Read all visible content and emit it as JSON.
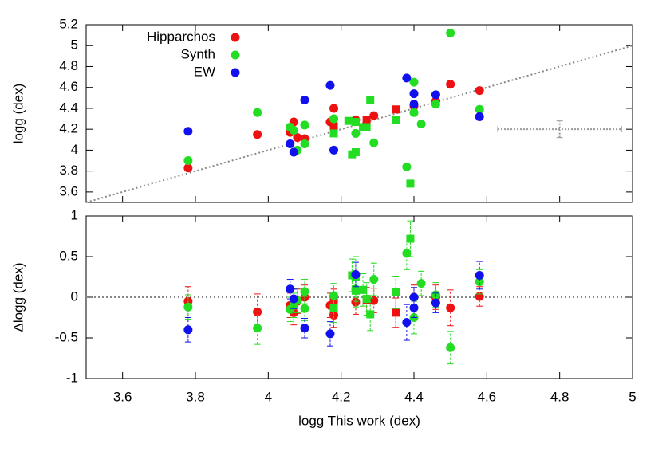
{
  "chart_data": [
    {
      "type": "scatter",
      "y_label": "logg (dex)",
      "xlim": [
        3.5,
        5
      ],
      "ylim": [
        3.5,
        5.2
      ],
      "yticks": [
        3.6,
        3.8,
        4,
        4.2,
        4.4,
        4.6,
        4.8,
        5,
        5.2
      ],
      "diagonal": true,
      "legend": "top-left",
      "sample_error": {
        "x": 4.8,
        "y": 4.2,
        "xerr": 0.17,
        "yerr": 0.08,
        "color": "#999999"
      },
      "series": [
        {
          "name": "Hipparchos",
          "color": "#ee1111",
          "x": [
            3.78,
            3.97,
            4.06,
            4.07,
            4.08,
            4.1,
            4.17,
            4.18,
            4.18,
            4.24,
            4.27,
            4.29,
            4.35,
            4.4,
            4.46,
            4.5,
            4.58
          ],
          "values": [
            3.83,
            4.15,
            4.17,
            4.27,
            4.12,
            4.11,
            4.27,
            4.4,
            4.23,
            4.29,
            4.29,
            4.33,
            4.39,
            4.42,
            4.47,
            4.63,
            4.57
          ],
          "markers": [
            "circle",
            "circle",
            "circle",
            "circle",
            "circle",
            "circle",
            "circle",
            "circle",
            "square",
            "circle",
            "square",
            "circle",
            "square",
            "circle",
            "circle",
            "circle",
            "circle"
          ]
        },
        {
          "name": "Synth",
          "color": "#22dd22",
          "x": [
            3.78,
            3.97,
            4.06,
            4.07,
            4.08,
            4.1,
            4.1,
            4.18,
            4.18,
            4.23,
            4.24,
            4.24,
            4.22,
            4.24,
            4.26,
            4.27,
            4.28,
            4.29,
            4.35,
            4.38,
            4.39,
            4.4,
            4.4,
            4.42,
            4.46,
            4.5,
            4.58
          ],
          "values": [
            3.9,
            4.36,
            4.22,
            4.19,
            4,
            4.24,
            4.06,
            4.3,
            4.16,
            3.96,
            3.98,
            4.16,
            4.28,
            4.27,
            4.22,
            4.22,
            4.48,
            4.07,
            4.29,
            3.84,
            3.68,
            4.65,
            4.36,
            4.25,
            4.44,
            5.12,
            4.39
          ],
          "markers": [
            "circle",
            "circle",
            "circle",
            "circle",
            "circle",
            "circle",
            "circle",
            "circle",
            "square",
            "square",
            "square",
            "circle",
            "square",
            "square",
            "square",
            "square",
            "square",
            "circle",
            "square",
            "circle",
            "square",
            "circle",
            "circle",
            "circle",
            "circle",
            "circle",
            "circle"
          ]
        },
        {
          "name": "EW",
          "color": "#1111ee",
          "x": [
            3.78,
            4.06,
            4.07,
            4.1,
            4.17,
            4.18,
            4.38,
            4.4,
            4.4,
            4.46,
            4.58
          ],
          "values": [
            4.18,
            4.06,
            3.98,
            4.48,
            4.62,
            4,
            4.69,
            4.54,
            4.44,
            4.53,
            4.32
          ],
          "markers": [
            "circle",
            "circle",
            "circle",
            "circle",
            "circle",
            "circle",
            "circle",
            "circle",
            "circle",
            "circle",
            "circle"
          ]
        }
      ]
    },
    {
      "type": "errorbar",
      "x_label": "logg This work (dex)",
      "y_label": "Δlogg (dex)",
      "xlim": [
        3.5,
        5
      ],
      "ylim": [
        -1,
        1
      ],
      "xticks": [
        3.6,
        3.8,
        4,
        4.2,
        4.4,
        4.6,
        4.8,
        5
      ],
      "yticks": [
        -1,
        -0.5,
        0,
        0.5,
        1
      ],
      "zero_line": true,
      "series": [
        {
          "color": "#ee1111",
          "x": [
            3.78,
            3.97,
            4.06,
            4.07,
            4.08,
            4.1,
            4.17,
            4.18,
            4.18,
            4.24,
            4.27,
            4.29,
            4.35,
            4.4,
            4.46,
            4.5,
            4.58
          ],
          "values": [
            -0.05,
            -0.18,
            -0.1,
            -0.19,
            -0.05,
            0,
            -0.1,
            -0.22,
            -0.05,
            -0.06,
            -0.03,
            -0.04,
            -0.19,
            0,
            0,
            -0.13,
            0.01
          ],
          "errors": [
            0.18,
            0.22,
            0.15,
            0.15,
            0.15,
            0.15,
            0.15,
            0.15,
            0.15,
            0.15,
            0.15,
            0.15,
            0.18,
            0.15,
            0.15,
            0.22,
            0.12
          ],
          "markers": [
            "circle",
            "circle",
            "circle",
            "circle",
            "circle",
            "circle",
            "circle",
            "circle",
            "square",
            "circle",
            "square",
            "circle",
            "square",
            "circle",
            "circle",
            "circle",
            "circle"
          ]
        },
        {
          "color": "#22dd22",
          "x": [
            3.78,
            3.97,
            4.06,
            4.07,
            4.08,
            4.1,
            4.1,
            4.18,
            4.18,
            4.23,
            4.24,
            4.24,
            4.24,
            4.26,
            4.27,
            4.28,
            4.29,
            4.35,
            4.38,
            4.39,
            4.4,
            4.42,
            4.46,
            4.5,
            4.58
          ],
          "values": [
            -0.12,
            -0.38,
            -0.15,
            -0.1,
            -0.04,
            -0.14,
            0.07,
            0.02,
            -0.13,
            0.27,
            0.25,
            0.1,
            0.08,
            0.09,
            -0.02,
            -0.21,
            0.22,
            0.06,
            0.54,
            0.72,
            -0.25,
            0.17,
            0.03,
            -0.62,
            0.19
          ],
          "errors": [
            0.15,
            0.2,
            0.15,
            0.15,
            0.15,
            0.15,
            0.15,
            0.15,
            0.18,
            0.2,
            0.25,
            0.15,
            0.2,
            0.2,
            0.2,
            0.2,
            0.2,
            0.2,
            0.2,
            0.22,
            0.2,
            0.15,
            0.15,
            0.2,
            0.15
          ],
          "markers": [
            "circle",
            "circle",
            "circle",
            "circle",
            "circle",
            "circle",
            "circle",
            "circle",
            "square",
            "square",
            "square",
            "circle",
            "square",
            "square",
            "square",
            "square",
            "circle",
            "square",
            "circle",
            "square",
            "circle",
            "circle",
            "circle",
            "circle",
            "circle"
          ]
        },
        {
          "color": "#1111ee",
          "x": [
            3.78,
            4.06,
            4.07,
            4.1,
            4.17,
            4.24,
            4.38,
            4.4,
            4.4,
            4.46,
            4.58
          ],
          "values": [
            -0.4,
            0.1,
            -0.02,
            -0.38,
            -0.45,
            0.28,
            -0.31,
            0,
            -0.13,
            -0.07,
            0.27
          ],
          "errors": [
            0.15,
            0.12,
            0.12,
            0.12,
            0.15,
            0.15,
            0.22,
            0.12,
            0.12,
            0.12,
            0.17
          ],
          "markers": [
            "circle",
            "circle",
            "circle",
            "circle",
            "circle",
            "circle",
            "circle",
            "circle",
            "circle",
            "circle",
            "circle"
          ]
        }
      ]
    }
  ]
}
